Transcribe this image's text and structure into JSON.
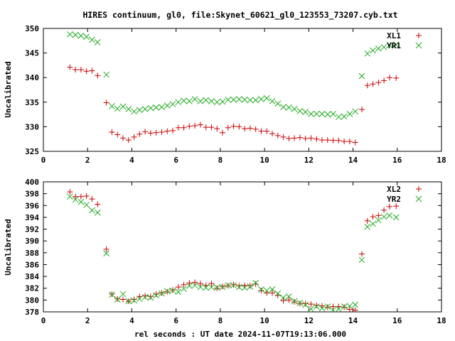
{
  "title": "HIRES continuum, gl0, file:Skynet_60621_gl0_123553_73207.cyb.txt",
  "xlabel": "rel seconds : UT date 2024-11-07T19:13:06.000",
  "colors": {
    "red": "#cc0000",
    "green": "#22aa22"
  },
  "chart_data": [
    {
      "type": "scatter",
      "ylabel": "Uncalibrated",
      "xlim": [
        0,
        18
      ],
      "ylim": [
        325,
        350
      ],
      "xticks": [
        0,
        2,
        4,
        6,
        8,
        10,
        12,
        14,
        16,
        18
      ],
      "yticks": [
        325,
        330,
        335,
        340,
        345,
        350
      ],
      "legend_position": "top-right",
      "series": [
        {
          "name": "XL1",
          "marker": "plus",
          "color": "#cc0000",
          "x": [
            1.2,
            1.45,
            1.7,
            1.95,
            2.2,
            2.45,
            2.85,
            3.1,
            3.35,
            3.6,
            3.85,
            4.1,
            4.35,
            4.6,
            4.85,
            5.1,
            5.35,
            5.6,
            5.85,
            6.1,
            6.35,
            6.6,
            6.85,
            7.1,
            7.35,
            7.6,
            7.85,
            8.1,
            8.35,
            8.6,
            8.85,
            9.1,
            9.35,
            9.6,
            9.85,
            10.1,
            10.35,
            10.6,
            10.85,
            11.1,
            11.35,
            11.6,
            11.85,
            12.1,
            12.35,
            12.6,
            12.85,
            13.1,
            13.35,
            13.6,
            13.85,
            14.1,
            14.4,
            14.65,
            14.9,
            15.15,
            15.4,
            15.65,
            15.95
          ],
          "y": [
            342.1,
            341.6,
            341.6,
            341.3,
            341.4,
            340.4,
            334.9,
            328.9,
            328.4,
            327.7,
            327.3,
            327.9,
            328.5,
            329.0,
            328.7,
            328.8,
            328.9,
            329.1,
            329.2,
            329.8,
            329.8,
            330.1,
            330.2,
            330.4,
            329.9,
            329.9,
            329.6,
            328.8,
            329.8,
            330.1,
            330.0,
            329.6,
            329.7,
            329.5,
            329.1,
            329.1,
            328.6,
            328.2,
            327.9,
            327.6,
            327.7,
            327.8,
            327.6,
            327.7,
            327.5,
            327.3,
            327.3,
            327.2,
            327.2,
            327.0,
            327.0,
            326.8,
            333.5,
            338.4,
            338.7,
            339.0,
            339.4,
            340.0,
            339.9
          ]
        },
        {
          "name": "YR1",
          "marker": "cross",
          "color": "#22aa22",
          "x": [
            1.2,
            1.45,
            1.7,
            1.95,
            2.2,
            2.45,
            2.85,
            3.1,
            3.35,
            3.6,
            3.85,
            4.1,
            4.35,
            4.6,
            4.85,
            5.1,
            5.35,
            5.6,
            5.85,
            6.1,
            6.35,
            6.6,
            6.85,
            7.1,
            7.35,
            7.6,
            7.85,
            8.1,
            8.35,
            8.6,
            8.85,
            9.1,
            9.35,
            9.6,
            9.85,
            10.1,
            10.35,
            10.6,
            10.85,
            11.1,
            11.35,
            11.6,
            11.85,
            12.1,
            12.35,
            12.6,
            12.85,
            13.1,
            13.35,
            13.6,
            13.85,
            14.1,
            14.4,
            14.65,
            14.9,
            15.15,
            15.4,
            15.65,
            15.95
          ],
          "y": [
            348.8,
            348.7,
            348.5,
            348.3,
            347.7,
            347.2,
            340.6,
            334.2,
            333.7,
            334.1,
            333.6,
            333.1,
            333.4,
            333.6,
            333.8,
            333.9,
            334.0,
            334.3,
            334.6,
            335.0,
            335.3,
            335.2,
            335.6,
            335.2,
            335.4,
            335.2,
            335.0,
            335.1,
            335.5,
            335.5,
            335.6,
            335.5,
            335.4,
            335.4,
            335.6,
            335.8,
            335.2,
            334.7,
            334.0,
            333.9,
            333.6,
            333.2,
            333.0,
            332.6,
            332.6,
            332.6,
            332.5,
            332.6,
            332.0,
            332.1,
            332.6,
            333.1,
            340.3,
            344.9,
            345.5,
            345.9,
            346.2,
            346.6,
            346.7
          ]
        }
      ]
    },
    {
      "type": "scatter",
      "ylabel": "Uncalibrated",
      "xlim": [
        0,
        18
      ],
      "ylim": [
        378,
        400
      ],
      "xticks": [
        0,
        2,
        4,
        6,
        8,
        10,
        12,
        14,
        16,
        18
      ],
      "yticks": [
        378,
        380,
        382,
        384,
        386,
        388,
        390,
        392,
        394,
        396,
        398,
        400
      ],
      "legend_position": "top-right",
      "series": [
        {
          "name": "XL2",
          "marker": "plus",
          "color": "#cc0000",
          "x": [
            1.2,
            1.45,
            1.7,
            1.95,
            2.2,
            2.45,
            2.85,
            3.1,
            3.35,
            3.6,
            3.85,
            4.1,
            4.35,
            4.6,
            4.85,
            5.1,
            5.35,
            5.6,
            5.85,
            6.1,
            6.35,
            6.6,
            6.85,
            7.1,
            7.35,
            7.6,
            7.85,
            8.1,
            8.35,
            8.6,
            8.85,
            9.1,
            9.35,
            9.6,
            9.85,
            10.1,
            10.35,
            10.6,
            10.85,
            11.1,
            11.35,
            11.6,
            11.85,
            12.1,
            12.35,
            12.6,
            12.85,
            13.1,
            13.35,
            13.6,
            13.85,
            14.1,
            14.4,
            14.65,
            14.9,
            15.15,
            15.4,
            15.65,
            15.95
          ],
          "y": [
            398.3,
            397.5,
            397.5,
            397.6,
            397.1,
            396.2,
            388.6,
            381.0,
            380.2,
            380.1,
            379.8,
            380.1,
            380.6,
            380.7,
            380.6,
            381.0,
            381.2,
            381.4,
            381.7,
            382.2,
            382.6,
            382.9,
            383.0,
            382.8,
            382.5,
            382.8,
            382.0,
            382.3,
            382.4,
            382.6,
            382.4,
            382.5,
            382.4,
            382.7,
            381.6,
            381.2,
            381.2,
            380.8,
            379.9,
            380.0,
            379.7,
            379.4,
            379.4,
            379.3,
            379.1,
            379.0,
            378.8,
            378.9,
            378.9,
            378.8,
            378.4,
            378.3,
            387.8,
            393.4,
            394.1,
            394.3,
            395.2,
            395.8,
            395.9
          ]
        },
        {
          "name": "YR2",
          "marker": "cross",
          "color": "#22aa22",
          "x": [
            1.2,
            1.45,
            1.7,
            1.95,
            2.2,
            2.45,
            2.85,
            3.1,
            3.35,
            3.6,
            3.85,
            4.1,
            4.35,
            4.6,
            4.85,
            5.1,
            5.35,
            5.6,
            5.85,
            6.1,
            6.35,
            6.6,
            6.85,
            7.1,
            7.35,
            7.6,
            7.85,
            8.1,
            8.35,
            8.6,
            8.85,
            9.1,
            9.35,
            9.6,
            9.85,
            10.1,
            10.35,
            10.6,
            10.85,
            11.1,
            11.35,
            11.6,
            11.85,
            12.1,
            12.35,
            12.6,
            12.85,
            13.1,
            13.35,
            13.6,
            13.85,
            14.1,
            14.4,
            14.65,
            14.9,
            15.15,
            15.4,
            15.65,
            15.95
          ],
          "y": [
            397.5,
            397.0,
            396.6,
            396.1,
            395.2,
            394.8,
            387.9,
            380.9,
            380.1,
            381.0,
            379.8,
            379.9,
            380.2,
            380.5,
            380.4,
            380.8,
            381.1,
            381.5,
            381.6,
            381.4,
            381.9,
            382.4,
            382.5,
            382.2,
            382.1,
            382.2,
            382.1,
            382.2,
            382.5,
            382.5,
            382.2,
            382.1,
            382.3,
            382.9,
            381.8,
            381.6,
            381.8,
            381.1,
            380.4,
            380.6,
            379.8,
            379.5,
            379.2,
            378.5,
            378.9,
            378.6,
            378.9,
            378.3,
            378.5,
            378.9,
            379.0,
            379.2,
            386.8,
            392.4,
            392.9,
            393.5,
            394.1,
            394.3,
            394.0
          ]
        }
      ]
    }
  ]
}
